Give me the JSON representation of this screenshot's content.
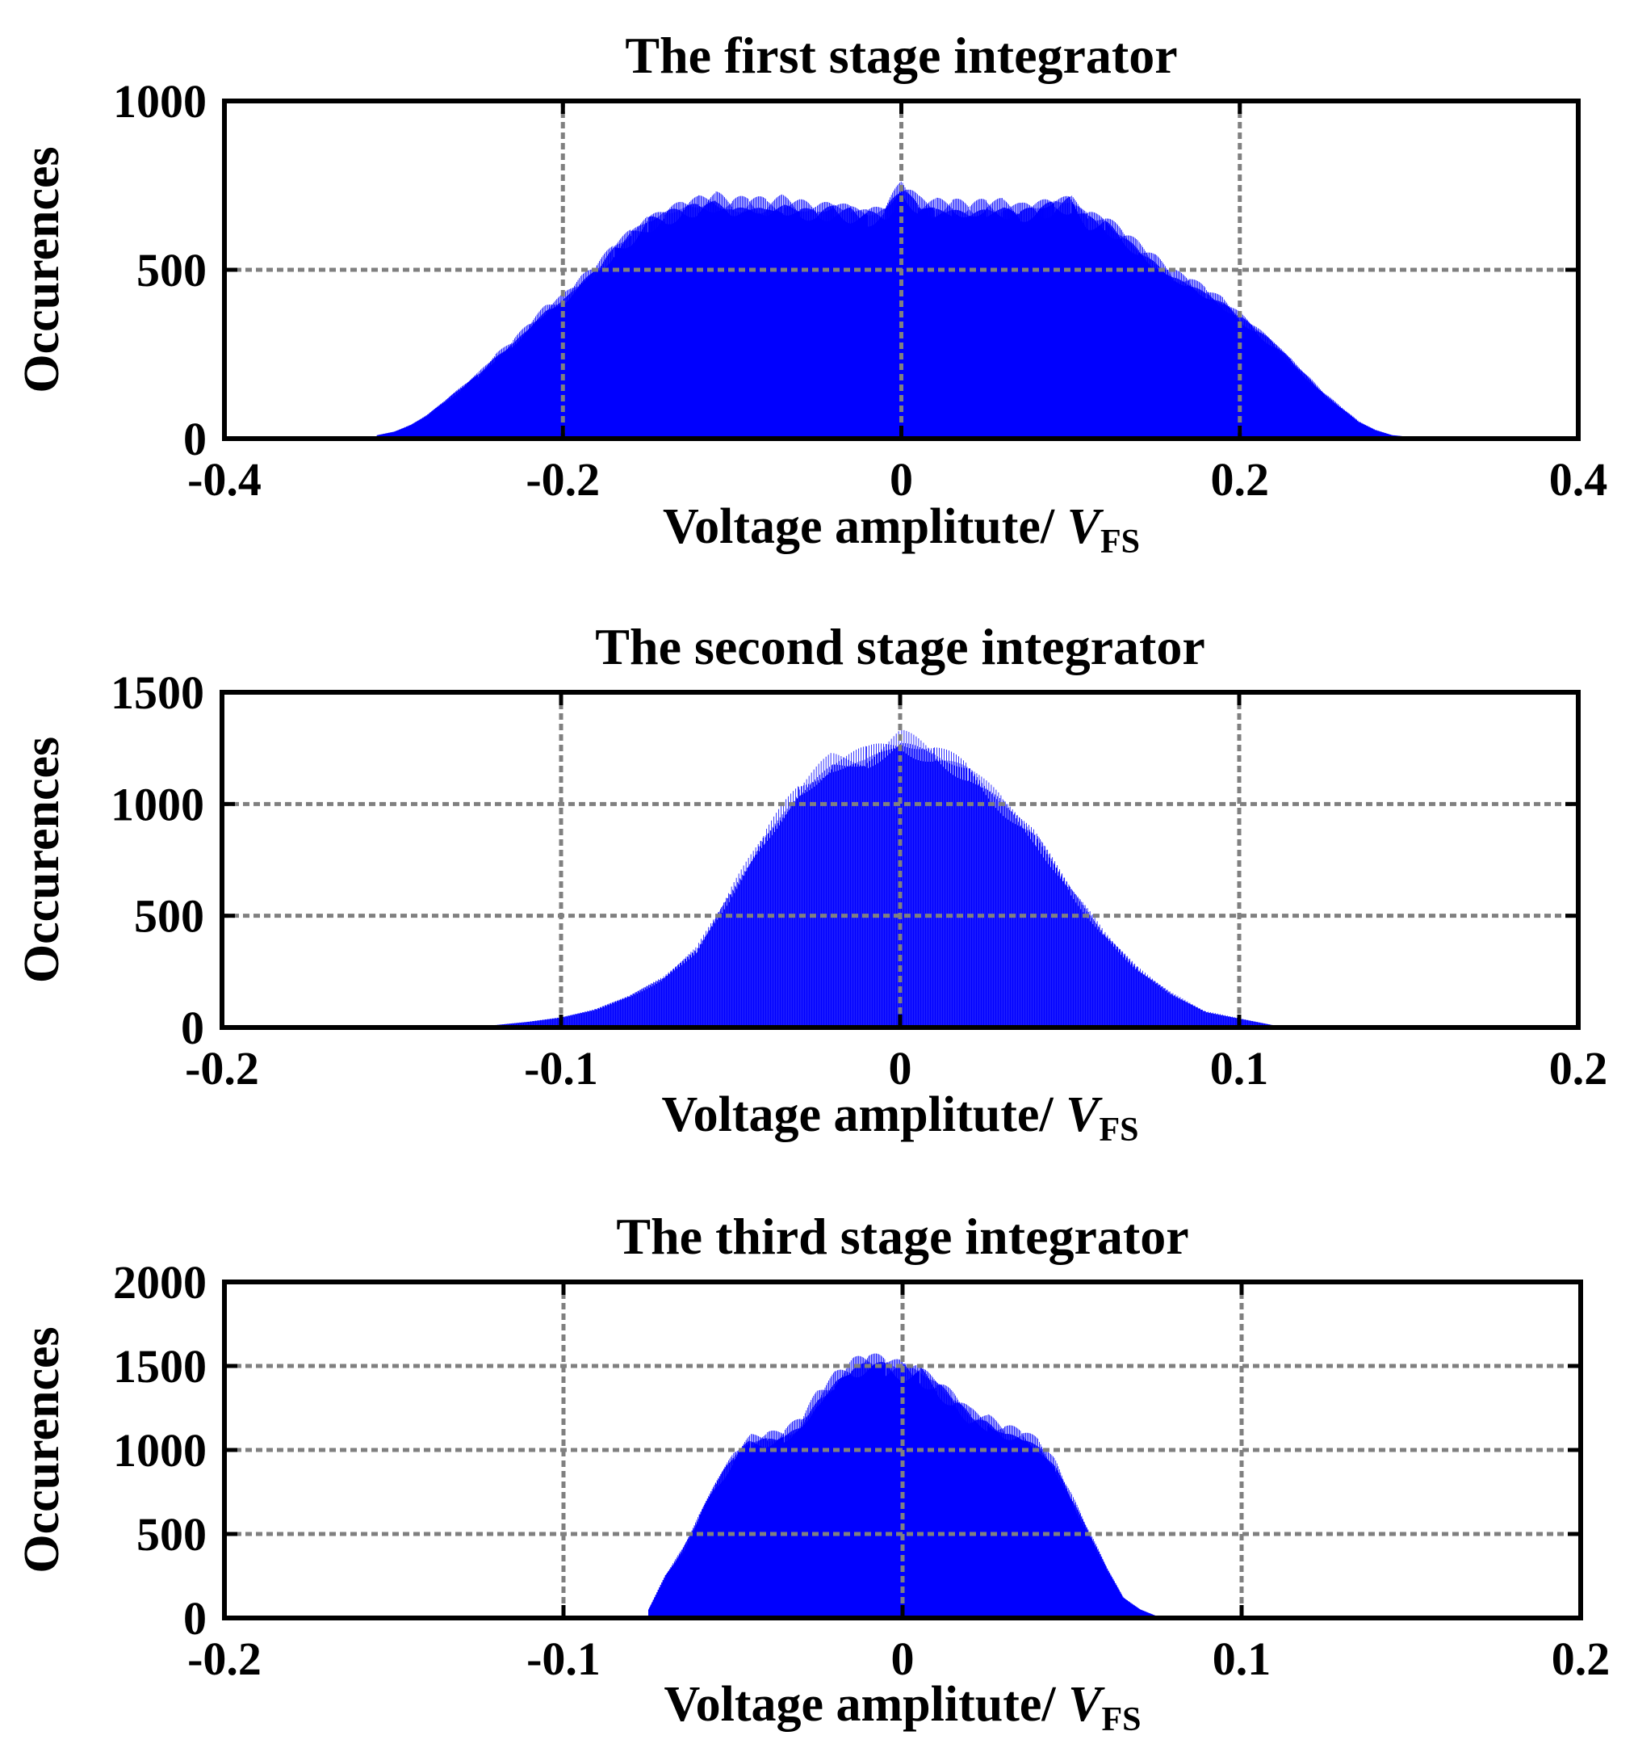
{
  "chart_data": [
    {
      "type": "bar",
      "title": "The first stage integrator",
      "xlabel_text": "Voltage amplitute/ ",
      "xlabel_var": "V",
      "xlabel_sub": "FS",
      "ylabel": "Occurences",
      "xlim": [
        -0.4,
        0.4
      ],
      "ylim": [
        0,
        1000
      ],
      "xticks": [
        -0.4,
        -0.2,
        0,
        0.2,
        0.4
      ],
      "xtick_labels": [
        "-0.4",
        "-0.2",
        "0",
        "0.2",
        "0.4"
      ],
      "yticks": [
        0,
        500,
        1000
      ],
      "ytick_labels": [
        "0",
        "500",
        "1000"
      ],
      "grid": true,
      "bar_color": "#0000ff",
      "x": [
        -0.31,
        -0.3,
        -0.29,
        -0.28,
        -0.27,
        -0.26,
        -0.25,
        -0.24,
        -0.23,
        -0.22,
        -0.21,
        -0.2,
        -0.19,
        -0.18,
        -0.17,
        -0.16,
        -0.15,
        -0.14,
        -0.13,
        -0.12,
        -0.11,
        -0.1,
        -0.09,
        -0.08,
        -0.07,
        -0.06,
        -0.05,
        -0.04,
        -0.03,
        -0.02,
        -0.01,
        0,
        0.01,
        0.02,
        0.03,
        0.04,
        0.05,
        0.06,
        0.07,
        0.08,
        0.09,
        0.1,
        0.11,
        0.12,
        0.13,
        0.14,
        0.15,
        0.16,
        0.17,
        0.18,
        0.19,
        0.2,
        0.21,
        0.22,
        0.23,
        0.24,
        0.25,
        0.26,
        0.27,
        0.28,
        0.29,
        0.3
      ],
      "y": [
        10,
        20,
        40,
        70,
        110,
        150,
        190,
        240,
        280,
        330,
        380,
        410,
        460,
        500,
        560,
        600,
        640,
        660,
        680,
        690,
        700,
        680,
        690,
        680,
        690,
        680,
        670,
        680,
        670,
        660,
        670,
        740,
        690,
        680,
        680,
        670,
        680,
        680,
        670,
        680,
        690,
        700,
        650,
        640,
        600,
        560,
        520,
        480,
        460,
        430,
        400,
        360,
        320,
        280,
        230,
        180,
        130,
        90,
        50,
        25,
        10,
        5
      ]
    },
    {
      "type": "bar",
      "title": "The second stage integrator",
      "xlabel_text": "Voltage amplitute/ ",
      "xlabel_var": "V",
      "xlabel_sub": "FS",
      "ylabel": "Occurences",
      "xlim": [
        -0.2,
        0.2
      ],
      "ylim": [
        0,
        1500
      ],
      "xticks": [
        -0.2,
        -0.1,
        0,
        0.1,
        0.2
      ],
      "xtick_labels": [
        "-0.2",
        "-0.1",
        "0",
        "0.1",
        "0.2"
      ],
      "yticks": [
        0,
        500,
        1000,
        1500
      ],
      "ytick_labels": [
        "0",
        "500",
        "1000",
        "1500"
      ],
      "grid": true,
      "bar_color": "#0000ff",
      "x": [
        -0.12,
        -0.11,
        -0.1,
        -0.09,
        -0.08,
        -0.07,
        -0.06,
        -0.05,
        -0.04,
        -0.03,
        -0.02,
        -0.01,
        0,
        0.01,
        0.02,
        0.03,
        0.04,
        0.05,
        0.06,
        0.07,
        0.08,
        0.09,
        0.1,
        0.11
      ],
      "y": [
        10,
        25,
        45,
        80,
        140,
        220,
        350,
        600,
        850,
        1050,
        1180,
        1200,
        1280,
        1220,
        1150,
        1000,
        850,
        620,
        420,
        260,
        150,
        70,
        40,
        10
      ]
    },
    {
      "type": "bar",
      "title": "The third stage integrator",
      "xlabel_text": "Voltage amplitute/ ",
      "xlabel_var": "V",
      "xlabel_sub": "FS",
      "ylabel": "Occurences",
      "xlim": [
        -0.2,
        0.2
      ],
      "ylim": [
        0,
        2000
      ],
      "xticks": [
        -0.2,
        -0.1,
        0,
        0.1,
        0.2
      ],
      "xtick_labels": [
        "-0.2",
        "-0.1",
        "0",
        "0.1",
        "0.2"
      ],
      "yticks": [
        0,
        500,
        1000,
        1500,
        2000
      ],
      "ytick_labels": [
        "0",
        "500",
        "1000",
        "1500",
        "2000"
      ],
      "grid": true,
      "bar_color": "#0000ff",
      "x": [
        -0.075,
        -0.07,
        -0.065,
        -0.06,
        -0.055,
        -0.05,
        -0.045,
        -0.04,
        -0.035,
        -0.03,
        -0.025,
        -0.02,
        -0.015,
        -0.01,
        -0.005,
        0,
        0.005,
        0.01,
        0.015,
        0.02,
        0.025,
        0.03,
        0.035,
        0.04,
        0.045,
        0.05,
        0.055,
        0.06,
        0.065,
        0.07,
        0.075
      ],
      "y": [
        50,
        250,
        400,
        600,
        800,
        950,
        1050,
        1060,
        1080,
        1150,
        1300,
        1400,
        1480,
        1520,
        1500,
        1480,
        1460,
        1380,
        1300,
        1200,
        1160,
        1100,
        1080,
        1020,
        900,
        700,
        500,
        300,
        120,
        50,
        10
      ]
    }
  ]
}
